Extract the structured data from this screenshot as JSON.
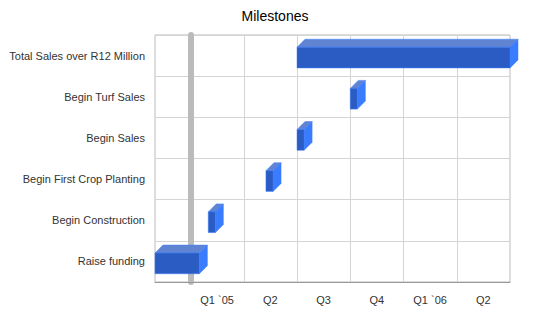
{
  "chart_data": {
    "type": "gantt",
    "title": "Milestones",
    "orientation": "horizontal",
    "categories": [
      "Raise funding",
      "Begin Construction",
      "Begin First Crop Planting",
      "Begin Sales",
      "Begin Turf Sales",
      "Total Sales over R12 Million"
    ],
    "starts": [
      -2,
      1,
      4.25,
      6,
      9,
      6
    ],
    "ends": [
      0.5,
      1.4,
      4.65,
      6.4,
      9.4,
      18
    ],
    "color": "#2b5cc3",
    "xlim": [
      -2,
      18
    ],
    "xticks": [
      {
        "value": 0,
        "label": "Q1 `05"
      },
      {
        "value": 3,
        "label": "Q2"
      },
      {
        "value": 6,
        "label": "Q3"
      },
      {
        "value": 9,
        "label": "Q4"
      },
      {
        "value": 12,
        "label": "Q1 `06"
      },
      {
        "value": 15,
        "label": "Q2"
      }
    ],
    "grid": true
  }
}
